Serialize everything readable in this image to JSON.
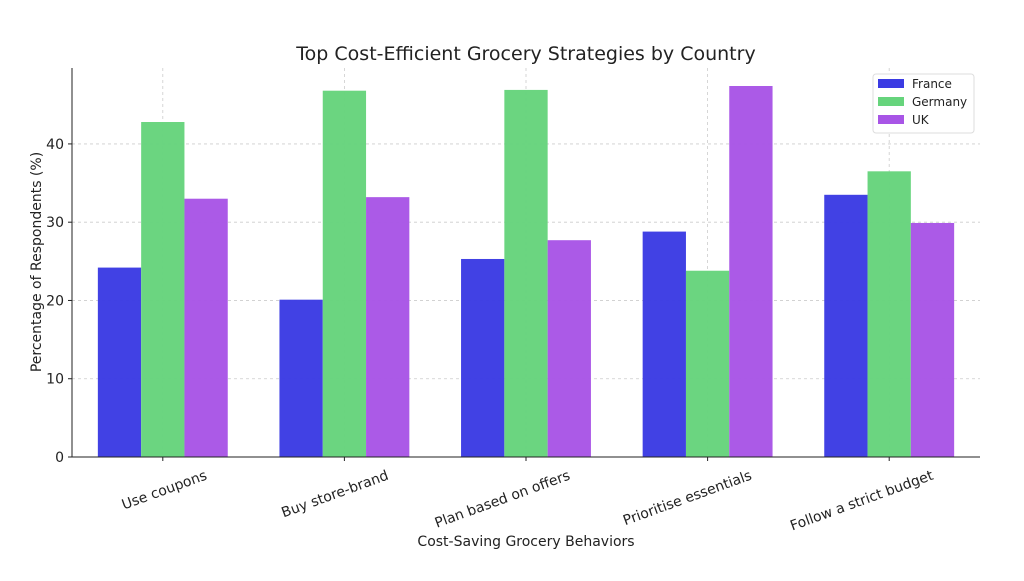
{
  "chart_data": {
    "type": "bar",
    "title": "Top Cost-Efficient Grocery Strategies by Country",
    "xlabel": "Cost-Saving Grocery Behaviors",
    "ylabel": "Percentage of Respondents (%)",
    "categories": [
      "Use coupons",
      "Buy store-brand",
      "Plan based on offers",
      "Prioritise essentials",
      "Follow a strict budget"
    ],
    "series": [
      {
        "name": "France",
        "color": "#3b3be3",
        "values": [
          24.2,
          20.1,
          25.3,
          28.8,
          33.5
        ]
      },
      {
        "name": "Germany",
        "color": "#66d47c",
        "values": [
          42.8,
          46.8,
          46.9,
          23.8,
          36.5
        ]
      },
      {
        "name": "UK",
        "color": "#a855e6",
        "values": [
          33.0,
          33.2,
          27.7,
          47.4,
          29.9
        ]
      }
    ],
    "ylim": [
      0,
      49.7
    ],
    "yticks": [
      0,
      10,
      20,
      30,
      40
    ],
    "grid": true,
    "legend_position": "top-right"
  }
}
